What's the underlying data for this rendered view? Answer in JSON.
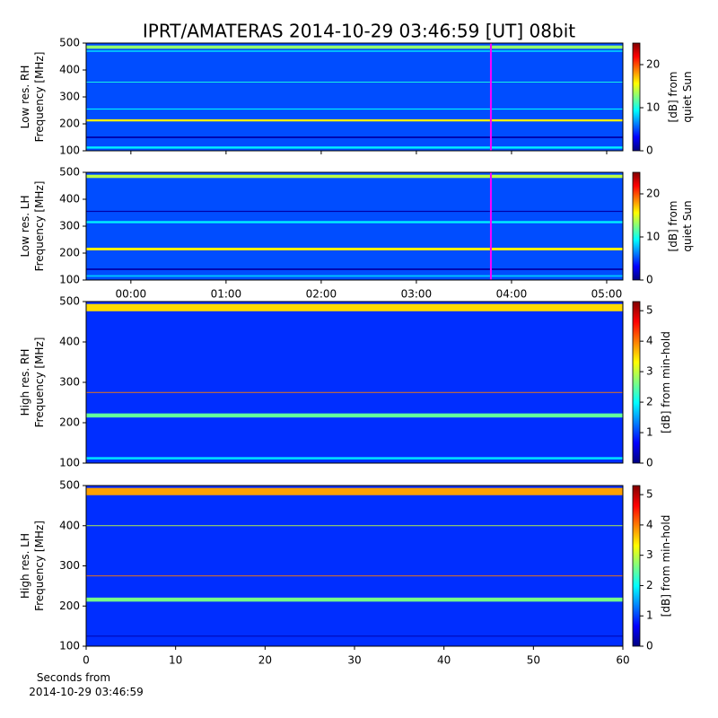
{
  "chart_data": [
    {
      "type": "spectrogram",
      "title": "IPRT/AMATERAS 2014-10-29 03:46:59 [UT]   08bit",
      "ylabel": [
        "Low res. RH",
        "Frequency [MHz]"
      ],
      "ylim": [
        100,
        500
      ],
      "yticks": [
        100,
        200,
        300,
        400,
        500
      ],
      "xlim": [
        -0.47,
        5.17
      ],
      "xticks": [
        {
          "value": 0,
          "label": "00:00"
        },
        {
          "value": 1,
          "label": "01:00"
        },
        {
          "value": 2,
          "label": "02:00"
        },
        {
          "value": 3,
          "label": "03:00"
        },
        {
          "value": 4,
          "label": "04:00"
        },
        {
          "value": 5,
          "label": "05:00"
        }
      ],
      "marker_x": 3.783,
      "marker_color": "#ff00ff",
      "background_level": 5,
      "bands": [
        {
          "freq": 485,
          "width": 12,
          "level": 13
        },
        {
          "freq": 470,
          "width": 6,
          "level": 8
        },
        {
          "freq": 355,
          "width": 3,
          "level": 10
        },
        {
          "freq": 255,
          "width": 4,
          "level": 9
        },
        {
          "freq": 213,
          "width": 8,
          "level": 16
        },
        {
          "freq": 150,
          "width": 6,
          "level": 1
        },
        {
          "freq": 112,
          "width": 8,
          "level": 9
        }
      ],
      "clim": [
        0,
        25
      ],
      "cticks": [
        0,
        10,
        20
      ],
      "clabel": [
        "[dB] from",
        "quiet Sun"
      ]
    },
    {
      "type": "spectrogram",
      "ylabel": [
        "Low res. LH",
        "Frequency [MHz]"
      ],
      "ylim": [
        100,
        500
      ],
      "yticks": [
        100,
        200,
        300,
        400,
        500
      ],
      "xlim": [
        -0.47,
        5.17
      ],
      "marker_x": 3.783,
      "marker_color": "#ff00ff",
      "background_level": 5,
      "bands": [
        {
          "freq": 485,
          "width": 12,
          "level": 14
        },
        {
          "freq": 355,
          "width": 4,
          "level": 1
        },
        {
          "freq": 315,
          "width": 8,
          "level": 9
        },
        {
          "freq": 215,
          "width": 10,
          "level": 16
        },
        {
          "freq": 140,
          "width": 6,
          "level": 1
        },
        {
          "freq": 115,
          "width": 6,
          "level": 8
        }
      ],
      "clim": [
        0,
        25
      ],
      "cticks": [
        0,
        10,
        20
      ],
      "clabel": [
        "[dB] from",
        "quiet Sun"
      ]
    },
    {
      "type": "spectrogram",
      "ylabel": [
        "High res. RH",
        "Frequency [MHz]"
      ],
      "ylim": [
        100,
        500
      ],
      "yticks": [
        100,
        200,
        300,
        400,
        500
      ],
      "xlim": [
        0,
        60
      ],
      "background_level": 0.9,
      "bands": [
        {
          "freq": 485,
          "width": 18,
          "level": 3.5
        },
        {
          "freq": 275,
          "width": 2,
          "level": 4
        },
        {
          "freq": 218,
          "width": 10,
          "level": 2.5
        },
        {
          "freq": 112,
          "width": 6,
          "level": 1.8
        }
      ],
      "clim": [
        0,
        5.3
      ],
      "cticks": [
        0,
        1,
        2,
        3,
        4,
        5
      ],
      "clabel": [
        "[dB] from min-hold"
      ]
    },
    {
      "type": "spectrogram",
      "ylabel": [
        "High res. LH",
        "Frequency [MHz]"
      ],
      "ylim": [
        100,
        500
      ],
      "yticks": [
        100,
        200,
        300,
        400,
        500
      ],
      "xlim": [
        0,
        60
      ],
      "xticks": [
        0,
        10,
        20,
        30,
        40,
        50,
        60
      ],
      "xlabel": [
        "Seconds from",
        "2014-10-29 03:46:59"
      ],
      "background_level": 0.9,
      "bands": [
        {
          "freq": 485,
          "width": 18,
          "level": 3.8
        },
        {
          "freq": 400,
          "width": 2,
          "level": 3
        },
        {
          "freq": 275,
          "width": 2,
          "level": 4
        },
        {
          "freq": 216,
          "width": 10,
          "level": 2.6
        },
        {
          "freq": 125,
          "width": 2,
          "level": 0.2
        }
      ],
      "clim": [
        0,
        5.3
      ],
      "cticks": [
        0,
        1,
        2,
        3,
        4,
        5
      ],
      "clabel": [
        "[dB] from min-hold"
      ]
    }
  ]
}
